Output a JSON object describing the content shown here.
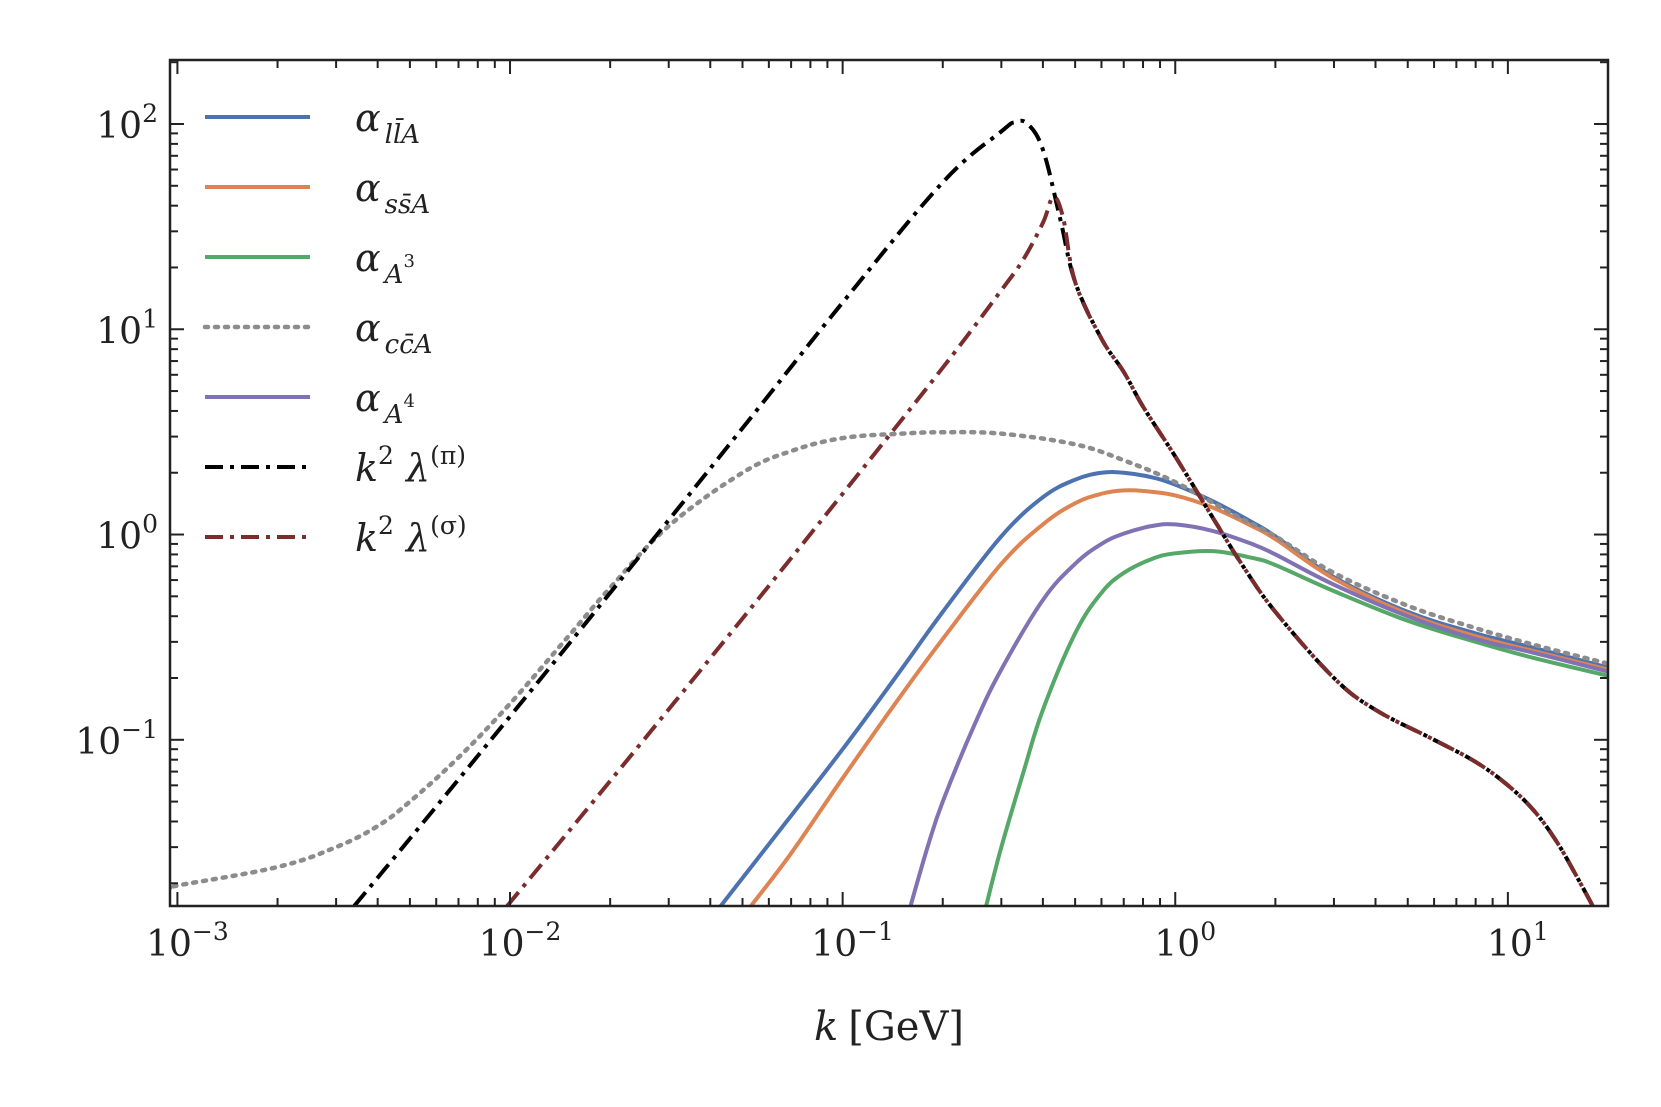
{
  "chart_data": {
    "type": "line",
    "title": "",
    "xlabel": "k [GeV]",
    "xlabel_parts": {
      "var": "k",
      "unit": "[GeV]"
    },
    "ylabel": "",
    "xscale": "log",
    "yscale": "log",
    "xlim": [
      0.00095,
      20
    ],
    "ylim": [
      0.0155,
      205
    ],
    "legend_position": "top-left",
    "x_ticks": [
      {
        "value": 0.001,
        "base": "10",
        "exp": "−3"
      },
      {
        "value": 0.01,
        "base": "10",
        "exp": "−2"
      },
      {
        "value": 0.1,
        "base": "10",
        "exp": "−1"
      },
      {
        "value": 1,
        "base": "10",
        "exp": "0"
      },
      {
        "value": 10,
        "base": "10",
        "exp": "1"
      }
    ],
    "y_ticks": [
      {
        "value": 0.1,
        "base": "10",
        "exp": "−1"
      },
      {
        "value": 1,
        "base": "10",
        "exp": "0"
      },
      {
        "value": 10,
        "base": "10",
        "exp": "1"
      },
      {
        "value": 100,
        "base": "10",
        "exp": "2"
      }
    ],
    "series": [
      {
        "name": "α_{l l̄ A}",
        "label_main": "α",
        "label_sub": "ll̄A",
        "label_sup": "",
        "color": "#4c72b0",
        "style": "solid",
        "x": [
          0.043,
          0.06,
          0.1,
          0.15,
          0.2,
          0.3,
          0.4,
          0.5,
          0.6,
          0.7,
          0.85,
          1.0,
          1.3,
          1.7,
          2.0,
          3.0,
          5.0,
          8.0,
          12.0,
          20.0
        ],
        "y": [
          0.0155,
          0.031,
          0.09,
          0.22,
          0.42,
          0.98,
          1.52,
          1.85,
          2.0,
          2.0,
          1.9,
          1.75,
          1.45,
          1.15,
          0.98,
          0.62,
          0.42,
          0.33,
          0.28,
          0.225
        ]
      },
      {
        "name": "α_{s s̄ A}",
        "label_main": "α",
        "label_sub": "ss̄A",
        "label_sup": "",
        "color": "#dd8452",
        "style": "solid",
        "x": [
          0.053,
          0.07,
          0.1,
          0.15,
          0.2,
          0.3,
          0.4,
          0.5,
          0.6,
          0.7,
          0.8,
          1.0,
          1.3,
          1.7,
          2.0,
          3.0,
          5.0,
          8.0,
          12.0,
          20.0
        ],
        "y": [
          0.0155,
          0.028,
          0.065,
          0.165,
          0.31,
          0.72,
          1.12,
          1.42,
          1.58,
          1.64,
          1.63,
          1.55,
          1.35,
          1.1,
          0.95,
          0.61,
          0.41,
          0.32,
          0.27,
          0.22
        ]
      },
      {
        "name": "α_{A^3}",
        "label_main": "α",
        "label_sub": "A",
        "label_sup": "3",
        "color": "#55a868",
        "style": "solid",
        "x": [
          0.27,
          0.3,
          0.35,
          0.4,
          0.5,
          0.6,
          0.7,
          0.85,
          1.0,
          1.3,
          1.7,
          2.0,
          3.0,
          5.0,
          8.0,
          12.0,
          20.0
        ],
        "y": [
          0.0155,
          0.03,
          0.07,
          0.14,
          0.33,
          0.52,
          0.65,
          0.76,
          0.81,
          0.83,
          0.77,
          0.71,
          0.53,
          0.38,
          0.3,
          0.25,
          0.205
        ]
      },
      {
        "name": "α_{c c̄ A}",
        "label_main": "α",
        "label_sub": "cc̄A",
        "label_sup": "",
        "color": "#8c8c8c",
        "style": "dotted",
        "x": [
          0.00095,
          0.001,
          0.002,
          0.003,
          0.004,
          0.005,
          0.007,
          0.01,
          0.015,
          0.02,
          0.03,
          0.05,
          0.07,
          0.1,
          0.15,
          0.2,
          0.3,
          0.5,
          0.7,
          1.0,
          1.5,
          2.0,
          3.0,
          5.0,
          8.0,
          12.0,
          20.0
        ],
        "y": [
          0.019,
          0.0195,
          0.024,
          0.03,
          0.038,
          0.05,
          0.082,
          0.15,
          0.32,
          0.55,
          1.1,
          2.0,
          2.55,
          2.95,
          3.1,
          3.15,
          3.1,
          2.75,
          2.3,
          1.8,
          1.25,
          0.98,
          0.65,
          0.45,
          0.35,
          0.29,
          0.235
        ]
      },
      {
        "name": "α_{A^4}",
        "label_main": "α",
        "label_sub": "A",
        "label_sup": "4",
        "color": "#8172b3",
        "style": "solid",
        "x": [
          0.16,
          0.18,
          0.2,
          0.25,
          0.3,
          0.4,
          0.5,
          0.6,
          0.7,
          0.85,
          1.0,
          1.3,
          1.7,
          2.0,
          3.0,
          5.0,
          8.0,
          12.0,
          20.0
        ],
        "y": [
          0.0155,
          0.03,
          0.05,
          0.12,
          0.22,
          0.48,
          0.72,
          0.9,
          1.01,
          1.1,
          1.12,
          1.04,
          0.9,
          0.8,
          0.57,
          0.4,
          0.31,
          0.265,
          0.215
        ]
      },
      {
        "name": "k^2 λ^(π)",
        "label_main": "k",
        "label_sub": "",
        "label_sup": "2",
        "label_tail": " λ",
        "label_tail_sup": "(π)",
        "color": "#000000",
        "style": "dashdot",
        "x": [
          0.0034,
          0.005,
          0.01,
          0.02,
          0.05,
          0.1,
          0.2,
          0.3,
          0.33,
          0.36,
          0.4,
          0.45,
          0.5,
          0.6,
          0.7,
          0.8,
          1.0,
          1.3,
          1.6,
          2.0,
          3.0,
          4.0,
          6.0,
          8.0,
          10.0,
          12.0,
          14.0,
          16.0,
          18.0
        ],
        "y": [
          0.0155,
          0.033,
          0.13,
          0.52,
          3.3,
          13.5,
          52.0,
          92.0,
          102.0,
          100.0,
          75.0,
          35.0,
          17.0,
          9.0,
          6.2,
          4.2,
          2.4,
          1.2,
          0.7,
          0.42,
          0.2,
          0.14,
          0.1,
          0.078,
          0.06,
          0.045,
          0.032,
          0.022,
          0.0155
        ]
      },
      {
        "name": "k^2 λ^(σ)",
        "label_main": "k",
        "label_sub": "",
        "label_sup": "2",
        "label_tail": " λ",
        "label_tail_sup": "(σ)",
        "color": "#7b2d2d",
        "style": "dashdot",
        "x": [
          0.0098,
          0.02,
          0.05,
          0.1,
          0.2,
          0.3,
          0.35,
          0.4,
          0.43,
          0.46,
          0.5,
          0.6,
          0.7,
          0.8,
          1.0,
          1.3,
          1.6,
          2.0,
          3.0,
          4.0,
          6.0,
          8.0,
          10.0,
          12.0,
          14.0,
          16.0,
          18.0
        ],
        "y": [
          0.0155,
          0.063,
          0.39,
          1.58,
          6.5,
          15.5,
          22.0,
          33.0,
          44.0,
          35.0,
          17.0,
          9.0,
          6.2,
          4.2,
          2.4,
          1.2,
          0.7,
          0.42,
          0.2,
          0.14,
          0.1,
          0.078,
          0.06,
          0.045,
          0.032,
          0.022,
          0.0155
        ]
      }
    ]
  }
}
